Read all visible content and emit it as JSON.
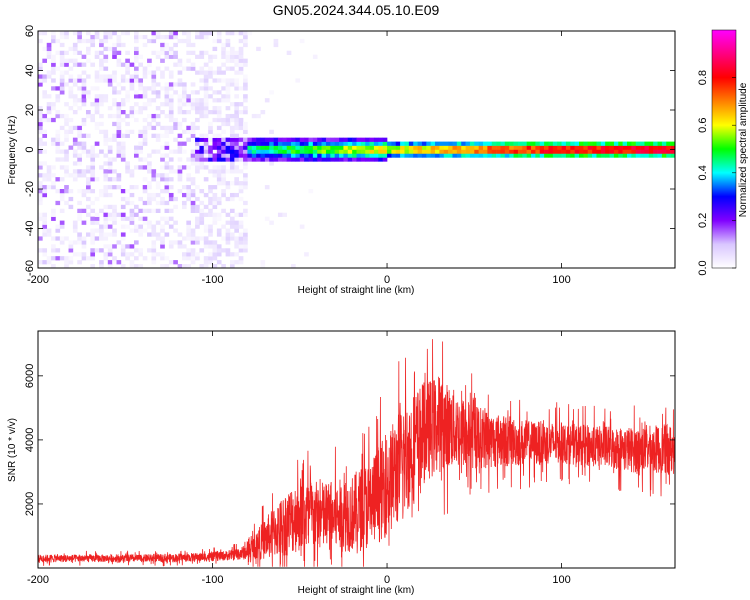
{
  "title": "GN05.2024.344.05.10.E09",
  "chart_data": [
    {
      "type": "heatmap",
      "xlabel": "Height of straight line (km)",
      "ylabel": "Frequency (Hz)",
      "xlim": [
        -200,
        165
      ],
      "ylim": [
        -60,
        60
      ],
      "xticks": [
        -200,
        -100,
        0,
        100
      ],
      "yticks": [
        -60,
        -40,
        -20,
        0,
        20,
        40,
        60
      ],
      "ridge_frequency_hz": 0,
      "regions": [
        {
          "x_start": -200,
          "x_end": -110,
          "description_value": "broadband noise",
          "amplitude_range": [
            0.0,
            0.2
          ]
        },
        {
          "x_start": -110,
          "x_end": -80,
          "amplitude_range": [
            0.0,
            0.3
          ]
        },
        {
          "x_start": -80,
          "x_end": 165,
          "ridge_halfwidth_hz": 5,
          "amplitude_range": [
            0.3,
            0.95
          ]
        }
      ],
      "colorbar": {
        "label": "Normalized spectral amplitude",
        "ticks": [
          0.0,
          0.2,
          0.4,
          0.6,
          0.8
        ],
        "range": [
          0.0,
          1.0
        ],
        "colors": [
          "#ffffff",
          "#d9c6ff",
          "#8000ff",
          "#0000ff",
          "#00ffff",
          "#00ff00",
          "#ffff00",
          "#ff8000",
          "#ff0000",
          "#ff0080",
          "#ff00ff"
        ]
      },
      "grid": false
    },
    {
      "type": "line",
      "xlabel": "Height of straight line (km)",
      "ylabel": "SNR (10 * v/v)",
      "xlim": [
        -200,
        165
      ],
      "ylim": [
        0,
        7400
      ],
      "xticks": [
        -200,
        -100,
        0,
        100
      ],
      "yticks": [
        2000,
        4000,
        6000
      ],
      "color": "#ee2222",
      "series": [
        {
          "x": [
            -200,
            -180,
            -160,
            -140,
            -120,
            -100,
            -90,
            -80,
            -70,
            -60,
            -50,
            -40,
            -30,
            -20,
            -10,
            0,
            5,
            10,
            20,
            30,
            40,
            50,
            60,
            80,
            100,
            120,
            140,
            165
          ],
          "y": [
            300,
            300,
            300,
            300,
            320,
            350,
            400,
            500,
            900,
            1300,
            1700,
            1600,
            1600,
            1700,
            2000,
            2600,
            3000,
            3400,
            4200,
            4500,
            4300,
            4100,
            4000,
            3900,
            3900,
            3800,
            3700,
            3700
          ],
          "spread": [
            150,
            150,
            150,
            150,
            160,
            180,
            200,
            300,
            800,
            1200,
            1500,
            1400,
            1400,
            1500,
            1800,
            2000,
            2200,
            2300,
            2000,
            1900,
            1500,
            1300,
            1100,
            900,
            800,
            800,
            900,
            1000
          ]
        }
      ],
      "grid": false
    }
  ]
}
